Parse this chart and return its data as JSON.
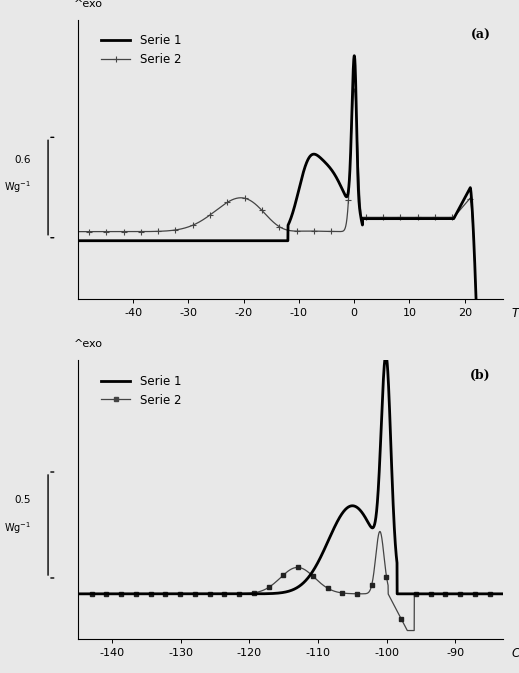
{
  "panel_a": {
    "label": "(a)",
    "xlabel": "T",
    "ylabel_top": "^exo",
    "ylabel_val": "0.6",
    "ylabel_unit": "Wg⁻¹",
    "xlim": [
      -50,
      27
    ],
    "xticks": [
      -40,
      -30,
      -20,
      -10,
      0,
      10,
      20
    ],
    "serie1_label": "Serie 1",
    "serie2_label": "Serie 2"
  },
  "panel_b": {
    "label": "(b)",
    "xlabel": "C",
    "ylabel_top": "^exo",
    "ylabel_val": "0.5",
    "ylabel_unit": "Wg⁻¹",
    "xlim": [
      -145,
      -83
    ],
    "xticks": [
      -140,
      -130,
      -120,
      -110,
      -100,
      -90
    ],
    "serie1_label": "Serie 1",
    "serie2_label": "Serie 2"
  },
  "bg_color": "#e8e8e8",
  "line_color1": "#000000",
  "line_color2": "#555555"
}
